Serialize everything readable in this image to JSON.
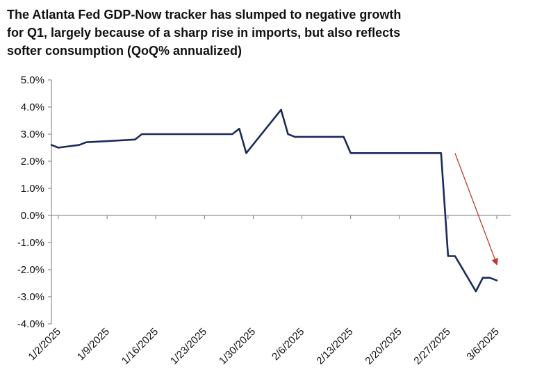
{
  "chart_data": {
    "type": "line",
    "title": [
      "The Atlanta Fed GDP-Now tracker has slumped to negative growth",
      "for Q1, largely because of a sharp rise in imports, but also reflects",
      "softer consumption  (QoQ% annualized)"
    ],
    "xlabel": "",
    "ylabel": "",
    "ylim": [
      -4,
      5
    ],
    "xlim": [
      "2025-01-01",
      "2025-03-08"
    ],
    "grid": false,
    "legend": "none",
    "x_tick_labels": [
      "1/2/2025",
      "1/9/2025",
      "1/16/2025",
      "1/23/2025",
      "1/30/2025",
      "2/6/2025",
      "2/13/2025",
      "2/20/2025",
      "2/27/2025",
      "3/6/2025"
    ],
    "x_tick_dates": [
      "2025-01-02",
      "2025-01-09",
      "2025-01-16",
      "2025-01-23",
      "2025-01-30",
      "2025-02-06",
      "2025-02-13",
      "2025-02-20",
      "2025-02-27",
      "2025-03-06"
    ],
    "y_tick_labels": [
      "5.0%",
      "4.0%",
      "3.0%",
      "2.0%",
      "1.0%",
      "0.0%",
      "-1.0%",
      "-2.0%",
      "-3.0%",
      "-4.0%"
    ],
    "y_tick_values": [
      5,
      4,
      3,
      2,
      1,
      0,
      -1,
      -2,
      -3,
      -4
    ],
    "series": [
      {
        "color": "#1b2a5c",
        "x": [
          "2025-01-01",
          "2025-01-02",
          "2025-01-05",
          "2025-01-06",
          "2025-01-13",
          "2025-01-14",
          "2025-01-15",
          "2025-01-16",
          "2025-01-27",
          "2025-01-28",
          "2025-01-29",
          "2025-02-03",
          "2025-02-04",
          "2025-02-05",
          "2025-02-07",
          "2025-02-12",
          "2025-02-13",
          "2025-02-26",
          "2025-02-27",
          "2025-02-28",
          "2025-03-03",
          "2025-03-04",
          "2025-03-05",
          "2025-03-06"
        ],
        "y": [
          2.6,
          2.5,
          2.6,
          2.7,
          2.8,
          3.0,
          3.0,
          3.0,
          3.0,
          3.2,
          2.3,
          3.9,
          3.0,
          2.9,
          2.9,
          2.9,
          2.3,
          2.3,
          -1.5,
          -1.5,
          -2.8,
          -2.3,
          -2.3,
          -2.4
        ]
      }
    ],
    "annotation": {
      "type": "arrow",
      "color": "#c0392b",
      "from": {
        "x": "2025-02-27",
        "y": 2.3
      },
      "to": {
        "x": "2025-03-06",
        "y": -1.8
      }
    }
  }
}
